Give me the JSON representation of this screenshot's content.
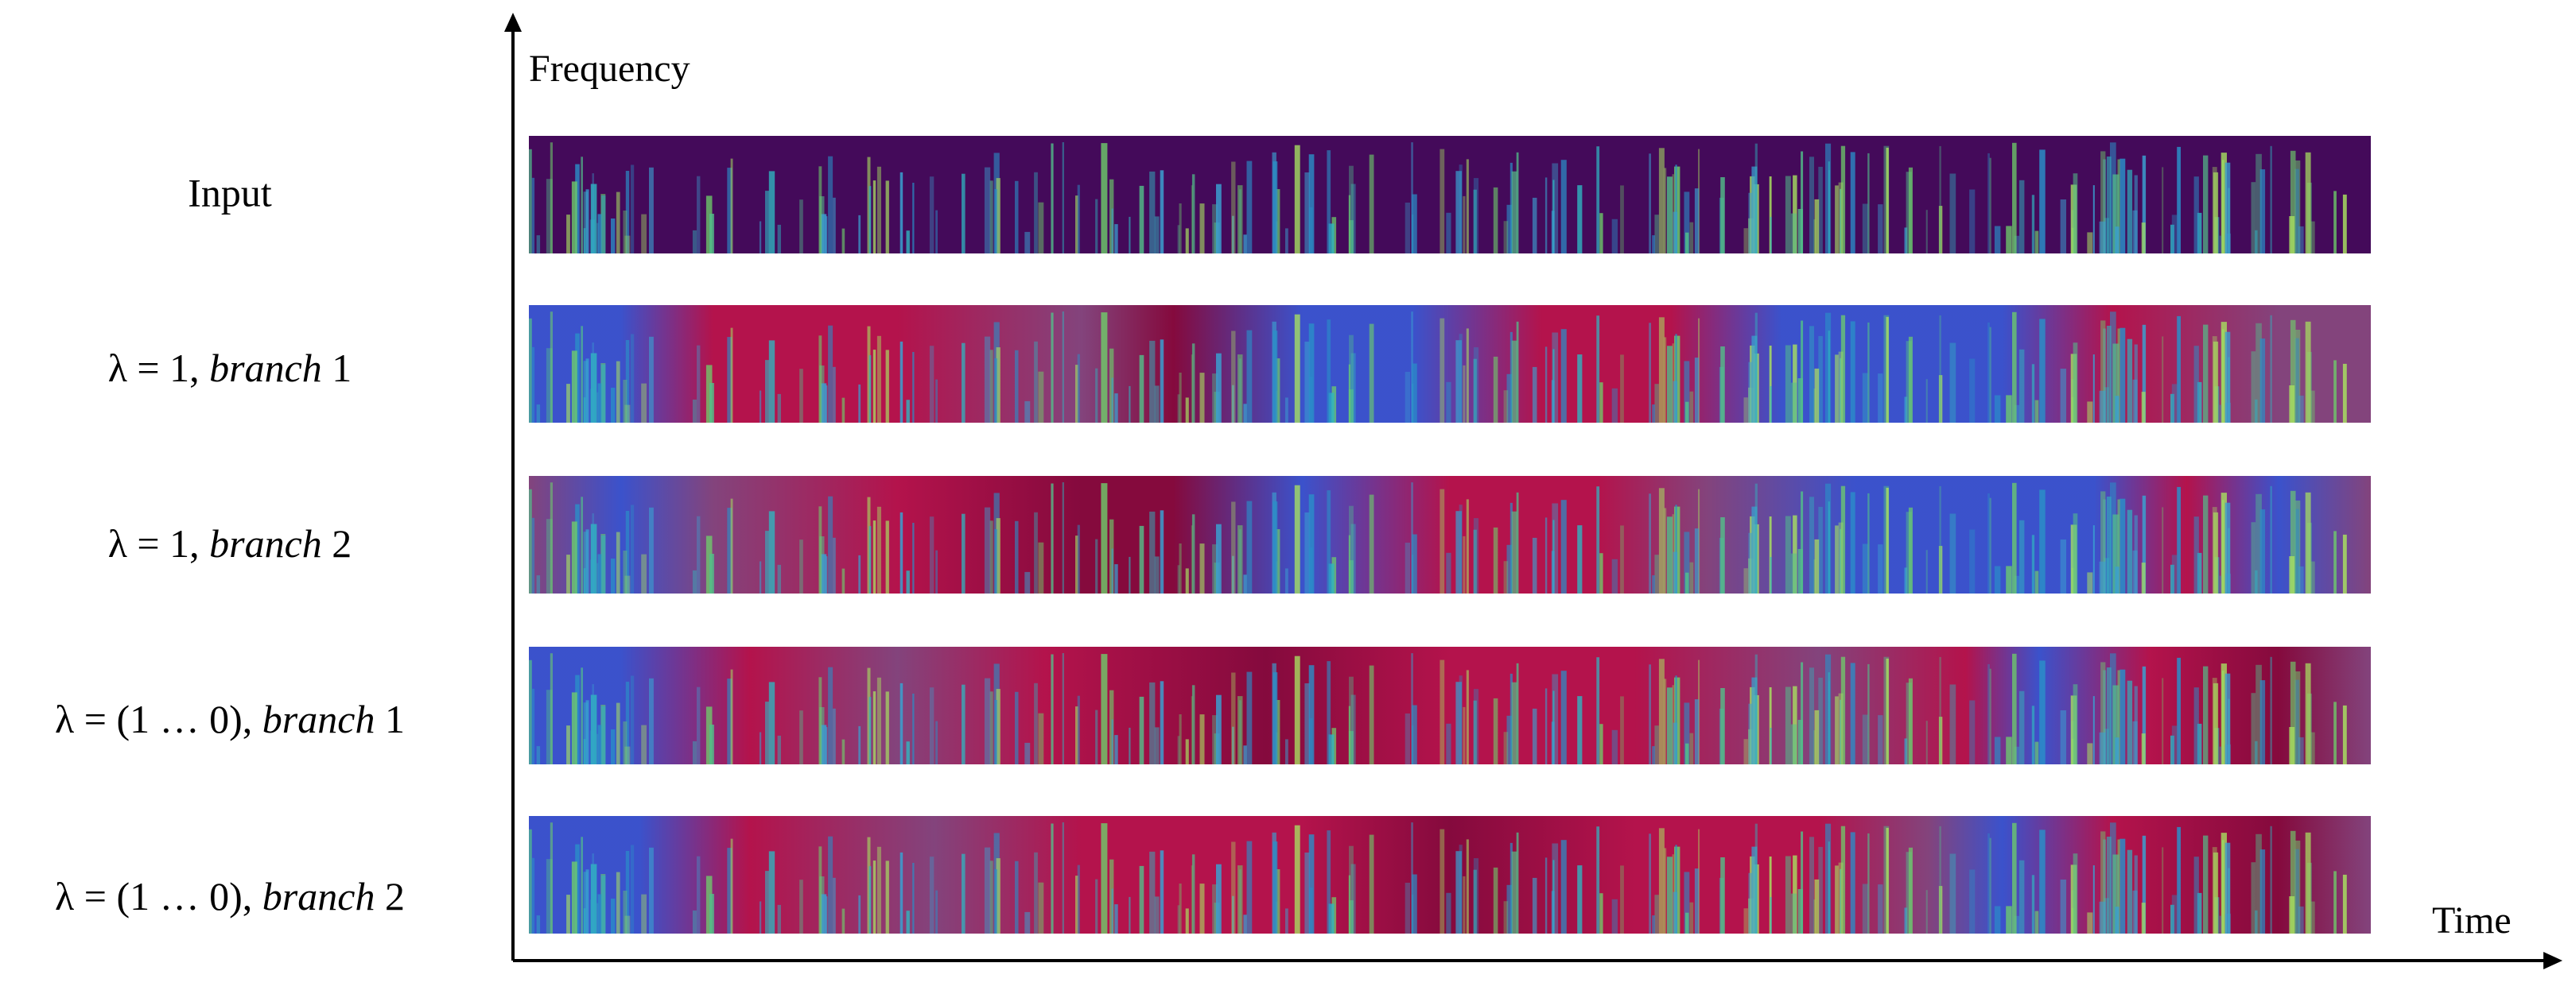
{
  "axes": {
    "y_label": "Frequency",
    "x_label": "Time"
  },
  "rows": [
    {
      "label": "Input"
    },
    {
      "math": "λ = 1,",
      "word": "branch",
      "number": "1"
    },
    {
      "math": "λ = 1,",
      "word": "branch",
      "number": "2"
    },
    {
      "math": "λ = (1 … 0),",
      "word": "branch",
      "number": "1"
    },
    {
      "math": "λ = (1 … 0),",
      "word": "branch",
      "number": "2"
    }
  ]
}
